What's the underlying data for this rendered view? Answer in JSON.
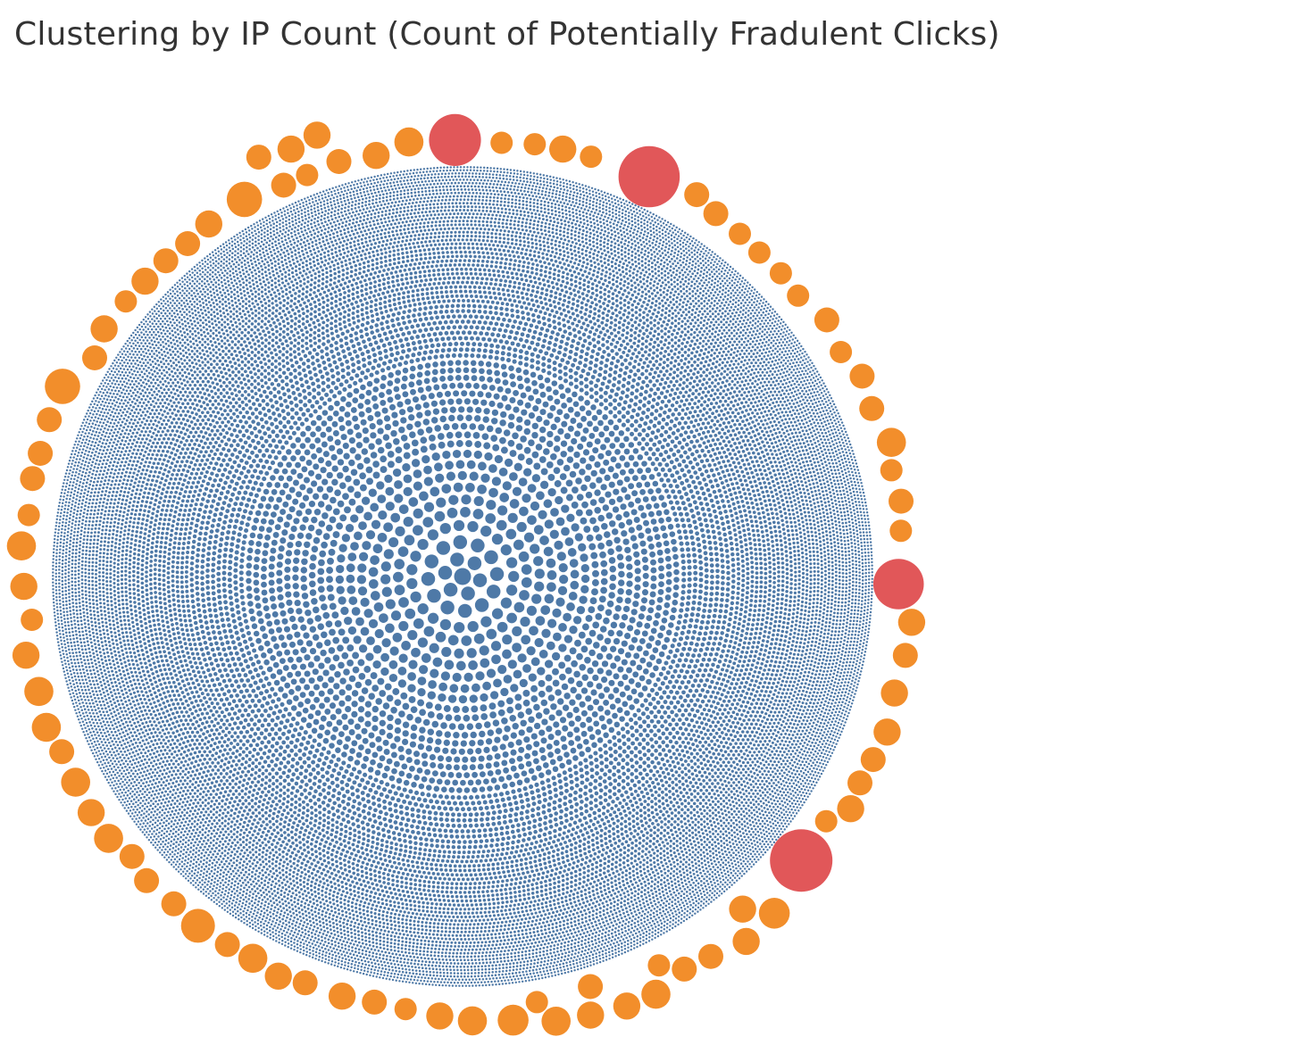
{
  "title": "Clustering by IP Count (Count of Potentially Fradulent Clicks)",
  "colors": {
    "normal": "#4e79a7",
    "suspicious": "#f28e2b",
    "fraudulent": "#e15759",
    "background": "#ffffff",
    "title_text": "#333333"
  },
  "chart_data": {
    "type": "scatter",
    "subtype": "packed-bubble",
    "title": "Clustering by IP Count (Count of Potentially Fradulent Clicks)",
    "xlabel": "",
    "ylabel": "",
    "grid": false,
    "legend": "none",
    "series": [
      {
        "category": "normal",
        "color": "#4e79a7",
        "note_bands": "dense central cluster of many small bubbles"
      },
      {
        "category": "suspicious",
        "color": "#f28e2b",
        "sizes": [
          9,
          9,
          8,
          6,
          6,
          6,
          5,
          5,
          5,
          5,
          5,
          5,
          5,
          5,
          5,
          5,
          5,
          5,
          4,
          4,
          4,
          4,
          4,
          4,
          4,
          4,
          4,
          4,
          4,
          4,
          4,
          4,
          4,
          4,
          4,
          4,
          4,
          4,
          4,
          4,
          3,
          3,
          3,
          3,
          3,
          3,
          3,
          3,
          3,
          3,
          3,
          3,
          3,
          3,
          3,
          3,
          3,
          3,
          3,
          3,
          3,
          3,
          3,
          3,
          3,
          3,
          3,
          3,
          2,
          2,
          2,
          2,
          2,
          2,
          2,
          2,
          2,
          2,
          2,
          2,
          2,
          2,
          2,
          2,
          2,
          2
        ]
      },
      {
        "category": "fraudulent",
        "color": "#e15759",
        "sizes": [
          20,
          19,
          12,
          11
        ]
      }
    ]
  }
}
